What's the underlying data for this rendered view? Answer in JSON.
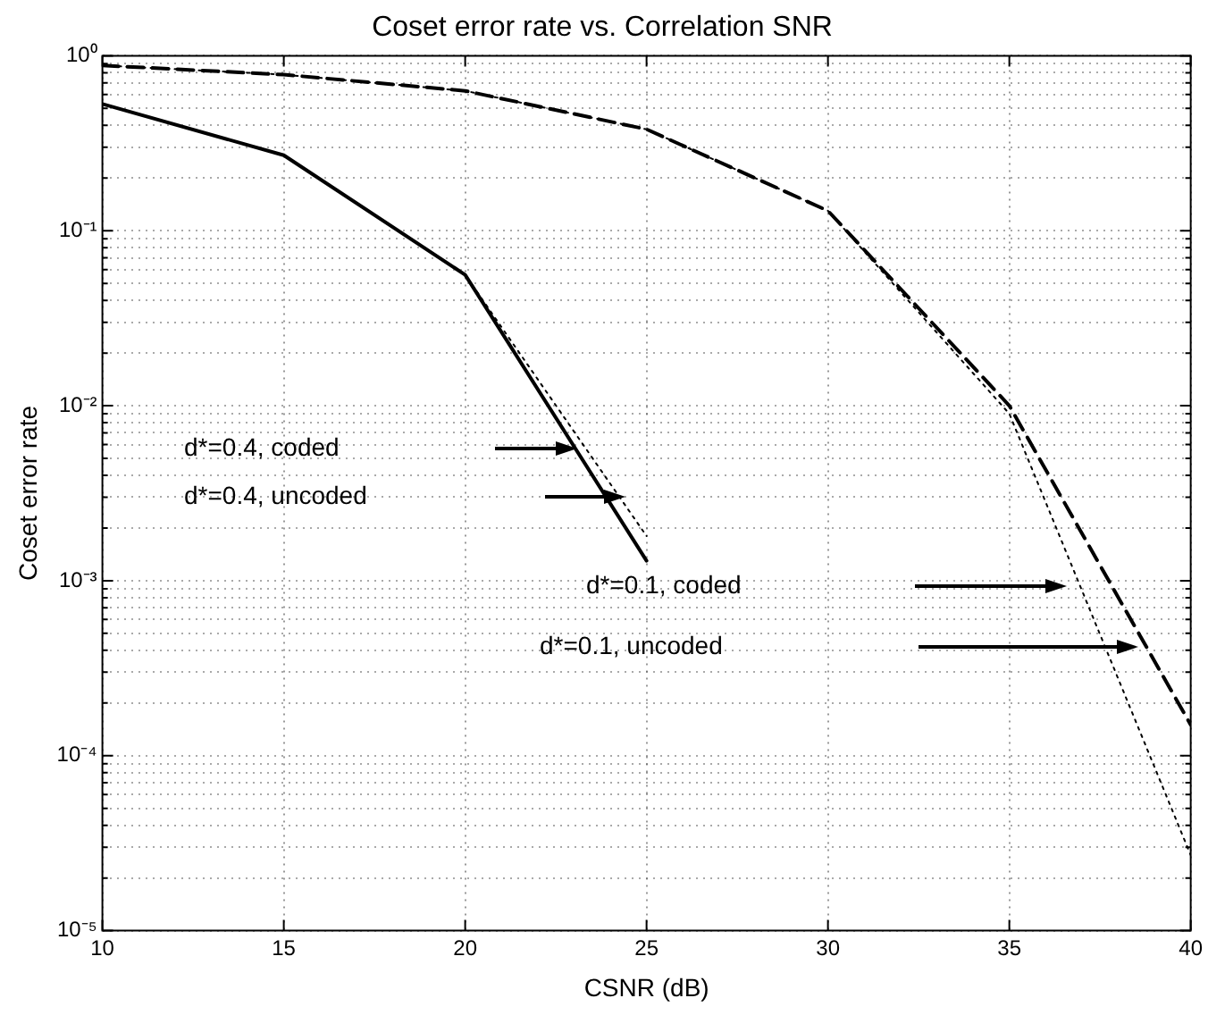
{
  "chart_data": {
    "type": "line",
    "title": "Coset error rate vs. Correlation SNR",
    "xlabel": "CSNR (dB)",
    "ylabel": "Coset error rate",
    "x": [
      10,
      15,
      20,
      25,
      30,
      35,
      40
    ],
    "series": [
      {
        "color": "#000000",
        "line_style": "solid",
        "values": [
          0.53,
          0.27,
          0.056,
          0.0013,
          null,
          null,
          null
        ]
      },
      {
        "color": "#000000",
        "line_style": "dotted",
        "values": [
          0.53,
          0.27,
          0.056,
          0.0018,
          null,
          null,
          null
        ]
      },
      {
        "color": "#000000",
        "line_style": "dashed",
        "values": [
          0.88,
          0.78,
          0.63,
          0.38,
          0.13,
          0.01,
          0.00015
        ]
      },
      {
        "color": "#000000",
        "line_style": "dotted",
        "values": [
          0.88,
          0.78,
          0.63,
          0.38,
          0.13,
          0.009,
          2.7e-05
        ]
      }
    ],
    "log": "y",
    "grid": true,
    "marker": "none",
    "xlim": [
      10,
      40
    ],
    "xticks": [
      10,
      15,
      20,
      25,
      30,
      35,
      40
    ],
    "ylim": [
      1e-05,
      1
    ],
    "yticks": [
      {
        "value": 1e-05,
        "label": "10⁻⁵"
      },
      {
        "value": 2e-05,
        "label": null
      },
      {
        "value": 3e-05,
        "label": null
      },
      {
        "value": 4e-05,
        "label": null
      },
      {
        "value": 5e-05,
        "label": null
      },
      {
        "value": 6e-05,
        "label": null
      },
      {
        "value": 7e-05,
        "label": null
      },
      {
        "value": 8e-05,
        "label": null
      },
      {
        "value": 9e-05,
        "label": null
      },
      {
        "value": 0.0001,
        "label": "10⁻⁴"
      },
      {
        "value": 0.0002,
        "label": null
      },
      {
        "value": 0.0003,
        "label": null
      },
      {
        "value": 0.0004,
        "label": null
      },
      {
        "value": 0.0005,
        "label": null
      },
      {
        "value": 0.0006,
        "label": null
      },
      {
        "value": 0.0007,
        "label": null
      },
      {
        "value": 0.0008,
        "label": null
      },
      {
        "value": 0.0009,
        "label": null
      },
      {
        "value": 0.001,
        "label": "10⁻³"
      },
      {
        "value": 0.002,
        "label": null
      },
      {
        "value": 0.003,
        "label": null
      },
      {
        "value": 0.004,
        "label": null
      },
      {
        "value": 0.005,
        "label": null
      },
      {
        "value": 0.006,
        "label": null
      },
      {
        "value": 0.007,
        "label": null
      },
      {
        "value": 0.008,
        "label": null
      },
      {
        "value": 0.009,
        "label": null
      },
      {
        "value": 0.01,
        "label": "10⁻²"
      },
      {
        "value": 0.02,
        "label": null
      },
      {
        "value": 0.03,
        "label": null
      },
      {
        "value": 0.04,
        "label": null
      },
      {
        "value": 0.05,
        "label": null
      },
      {
        "value": 0.06,
        "label": null
      },
      {
        "value": 0.07,
        "label": null
      },
      {
        "value": 0.08,
        "label": null
      },
      {
        "value": 0.09,
        "label": null
      },
      {
        "value": 0.1,
        "label": "10⁻¹"
      },
      {
        "value": 0.2,
        "label": null
      },
      {
        "value": 0.3,
        "label": null
      },
      {
        "value": 0.4,
        "label": null
      },
      {
        "value": 0.5,
        "label": null
      },
      {
        "value": 0.6,
        "label": null
      },
      {
        "value": 0.7,
        "label": null
      },
      {
        "value": 0.8,
        "label": null
      },
      {
        "value": 0.9,
        "label": null
      },
      {
        "value": 1,
        "label": "10⁰"
      }
    ],
    "annotations": [
      "d*=0.4, coded",
      "d*=0.4, uncoded",
      "d*=0.1, coded",
      "d*=0.1, uncoded"
    ]
  }
}
